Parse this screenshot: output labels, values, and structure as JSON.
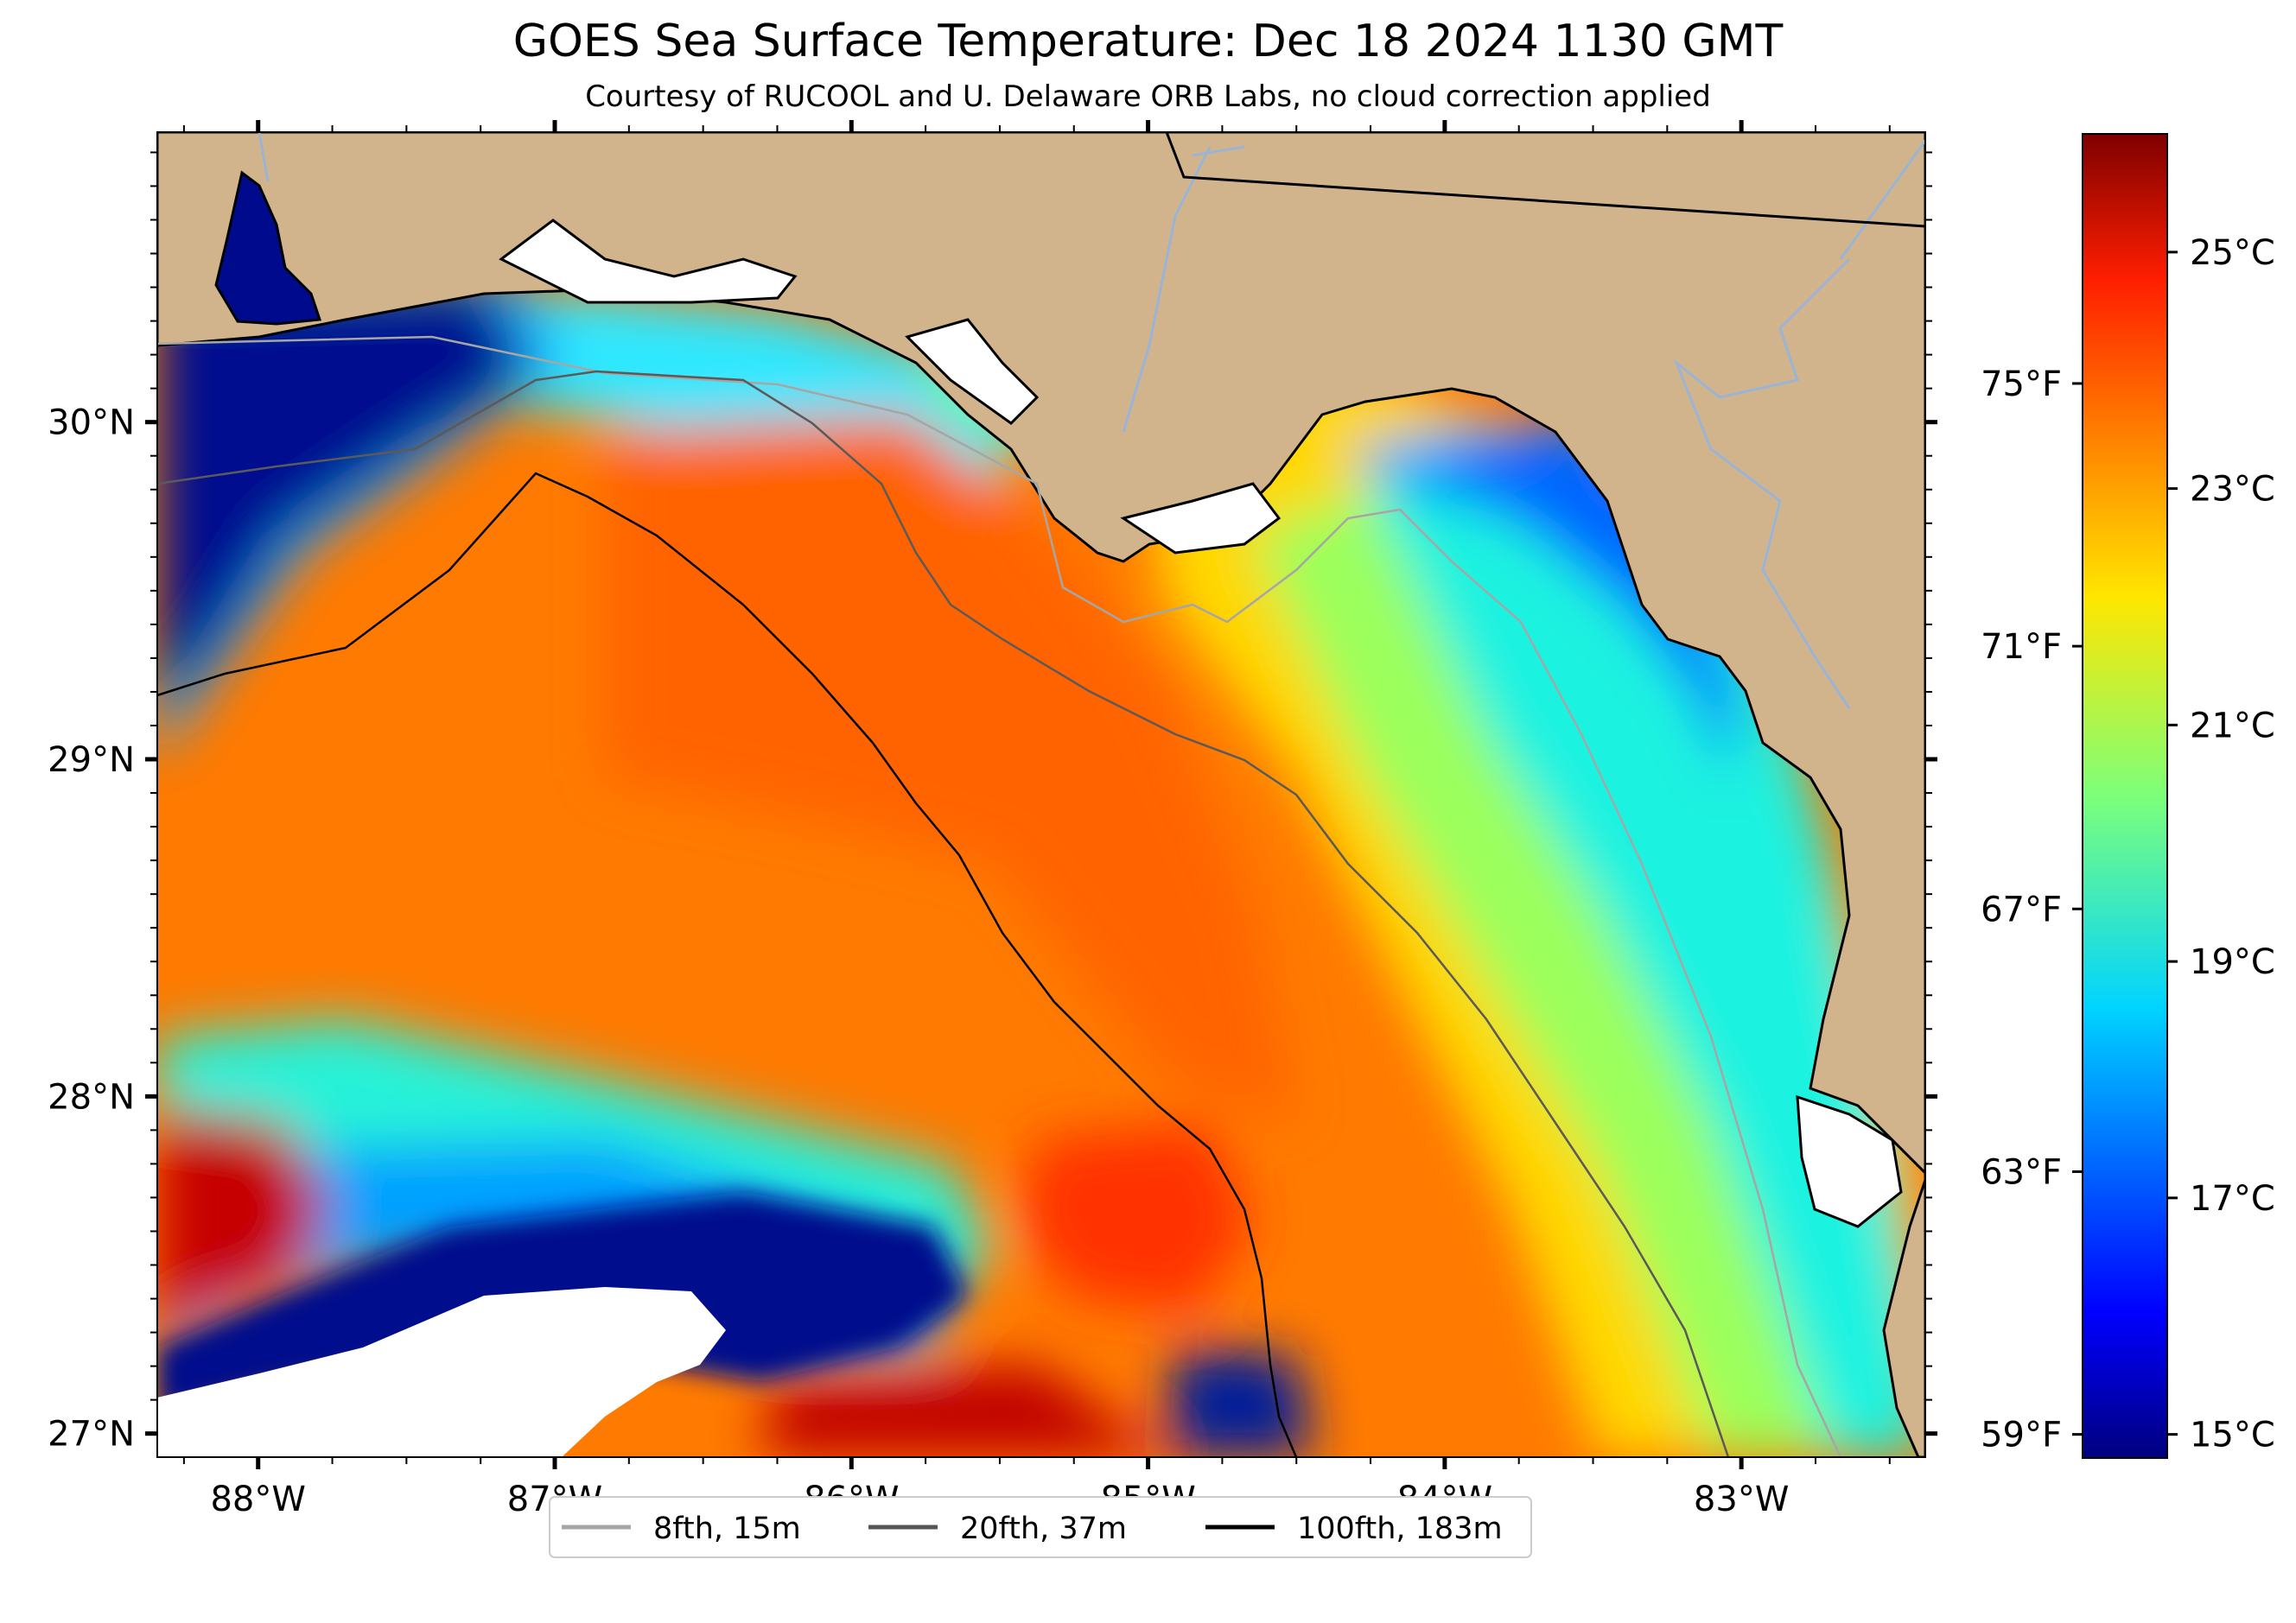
{
  "title": "GOES Sea Surface Temperature: Dec 18 2024 1130 GMT",
  "subtitle": "Courtesy of RUCOOL and U. Delaware ORB Labs, no cloud correction applied",
  "map": {
    "type": "heatmap",
    "lon_range": [
      -88.34,
      -82.38
    ],
    "lat_range": [
      26.93,
      30.86
    ],
    "lat_ticks": [
      "30°N",
      "29°N",
      "28°N",
      "27°N"
    ],
    "lon_ticks": [
      "88°W",
      "87°W",
      "86°W",
      "85°W",
      "84°W",
      "83°W"
    ],
    "colors": {
      "land": "#d2b48c",
      "no_data": "#ffffff",
      "coastline": "#000000"
    }
  },
  "colorbar": {
    "celsius_labels": [
      "25°C",
      "23°C",
      "21°C",
      "19°C",
      "17°C",
      "15°C"
    ],
    "fahrenheit_labels": [
      "75°F",
      "71°F",
      "67°F",
      "63°F",
      "59°F"
    ],
    "colormap": "jet",
    "range_celsius": [
      14.8,
      26.0
    ]
  },
  "legend": {
    "items": [
      {
        "label": "8fth, 15m",
        "color": "#a6a6a6"
      },
      {
        "label": "20fth, 37m",
        "color": "#555555"
      },
      {
        "label": "100fth, 183m",
        "color": "#000000"
      }
    ]
  }
}
